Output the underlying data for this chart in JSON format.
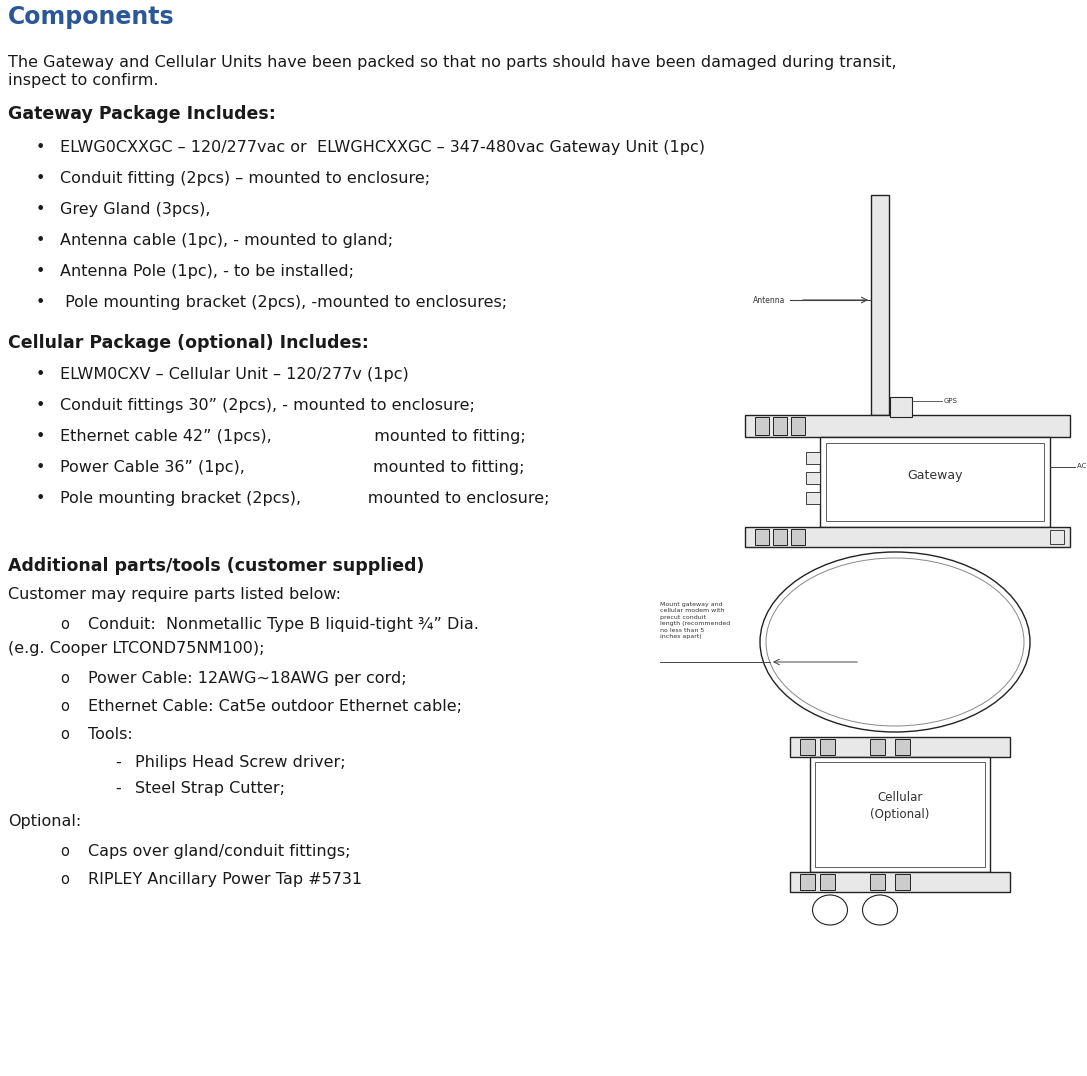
{
  "title": "Components",
  "title_color": "#2B5797",
  "title_fontsize": 17,
  "bg_color": "#ffffff",
  "intro_text_line1": "The Gateway and Cellular Units have been packed so that no parts should have been damaged during transit,",
  "intro_text_line2": "inspect to confirm.",
  "gateway_header": "Gateway Package Includes:",
  "gateway_bullets": [
    "ELWG0CXXGC – 120/277vac or  ELWGHCXXGC – 347-480vac Gateway Unit (1pc)",
    "Conduit fitting (2pcs) – mounted to enclosure;",
    "Grey Gland (3pcs),",
    "Antenna cable (1pc), - mounted to gland;",
    "Antenna Pole (1pc), - to be installed;",
    " Pole mounting bracket (2pcs), -mounted to enclosures;"
  ],
  "cellular_header": "Cellular Package (optional) Includes:",
  "cellular_bullets": [
    "ELWM0CXV – Cellular Unit – 120/277v (1pc)",
    "Conduit fittings 30” (2pcs), - mounted to enclosure;",
    "Ethernet cable 42” (1pcs),                    mounted to fitting;",
    "Power Cable 36” (1pc),                         mounted to fitting;",
    "Pole mounting bracket (2pcs),             mounted to enclosure;"
  ],
  "additional_header": "Additional parts/tools (customer supplied)",
  "additional_intro": "Customer may require parts listed below:",
  "optional_text": "Optional:",
  "optional_items": [
    "Caps over gland/conduit fittings;",
    "RIPLEY Ancillary Power Tap #5731"
  ],
  "body_fontsize": 11.5,
  "header_fontsize": 12.5,
  "text_color": "#1a1a1a"
}
